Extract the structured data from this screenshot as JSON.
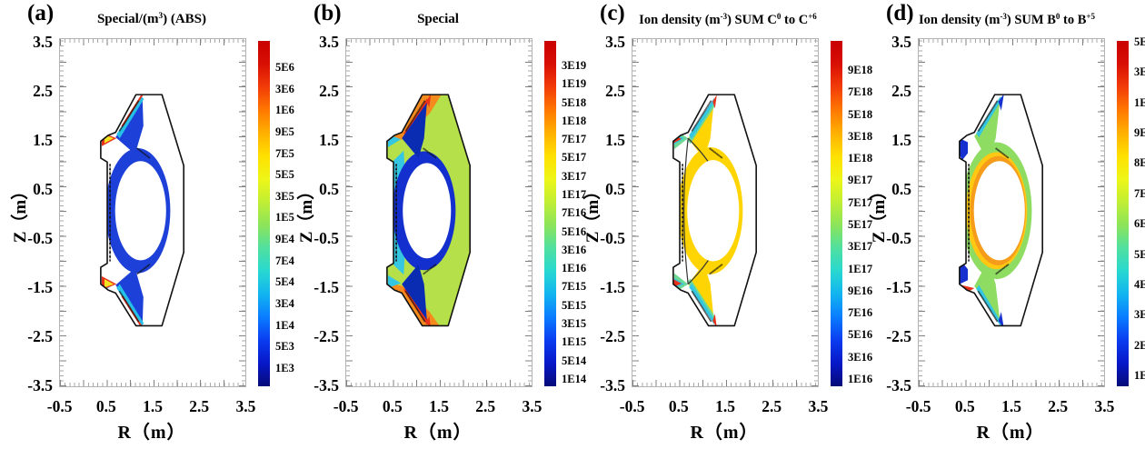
{
  "colormap_stops": [
    "#050a78",
    "#0718c8",
    "#0a3cf0",
    "#0a7cff",
    "#12b4f0",
    "#28d8d0",
    "#50e0a0",
    "#8ce45a",
    "#c0ee34",
    "#eef618",
    "#ffe000",
    "#ffb000",
    "#ff7800",
    "#f23c08",
    "#d80f04",
    "#c80000"
  ],
  "chart_data": [
    {
      "panel": "a",
      "type": "heatmap",
      "corner_label": "(a)",
      "title": "Special/(m^3) (ABS)",
      "title_parts": [
        {
          "t": "Special/(m"
        },
        {
          "t": "3",
          "sup": true
        },
        {
          "t": ") (ABS)"
        }
      ],
      "xlabel": "R（m）",
      "ylabel": "Z（m）",
      "xlim": [
        -0.5,
        3.5
      ],
      "ylim": [
        -3.5,
        3.5
      ],
      "x_ticks": [
        "-0.5",
        "0.5",
        "1.5",
        "2.5",
        "3.5"
      ],
      "y_ticks": [
        "3.5",
        "2.5",
        "1.5",
        "0.5",
        "-0.5",
        "-1.5",
        "-2.5",
        "-3.5"
      ],
      "colorbar_order": "top-to-bottom",
      "colorbar_labels": [
        "5E6",
        "3E6",
        "1E6",
        "9E5",
        "7E5",
        "5E5",
        "3E5",
        "1E5",
        "9E4",
        "7E4",
        "5E4",
        "3E4",
        "1E4",
        "5E3",
        "1E3"
      ],
      "colorbar_scale": "log",
      "colormap": "rainbow-jet",
      "region_colors": {
        "ring": "#1c40d8",
        "fan": "#25bfe8",
        "hot": "#e8321a",
        "warm": "#f2e41e",
        "core": "#ffffff"
      },
      "description": "Tokamak poloidal cross-section: thin blue edge layer around white plasma core; rainbow hot spots up to red at upper and lower inner X-point/divertor regions; log colour scale 1E3 to 5E6."
    },
    {
      "panel": "b",
      "type": "heatmap",
      "corner_label": "(b)",
      "title": "Special",
      "title_parts": [
        {
          "t": "Special"
        }
      ],
      "xlabel": "R（m）",
      "ylabel": "Z（m）",
      "xlim": [
        -0.5,
        3.5
      ],
      "ylim": [
        -3.5,
        3.5
      ],
      "x_ticks": [
        "-0.5",
        "0.5",
        "1.5",
        "2.5",
        "3.5"
      ],
      "y_ticks": [
        "3.5",
        "2.5",
        "1.5",
        "0.5",
        "-0.5",
        "-1.5",
        "-2.5",
        "-3.5"
      ],
      "colorbar_order": "top-to-bottom",
      "colorbar_labels": [
        "3E19",
        "1E19",
        "5E18",
        "1E18",
        "7E17",
        "5E17",
        "3E17",
        "1E17",
        "7E16",
        "5E16",
        "3E16",
        "1E16",
        "7E15",
        "5E15",
        "3E15",
        "1E15",
        "5E14",
        "1E14"
      ],
      "colorbar_scale": "log",
      "colormap": "rainbow-jet",
      "region_colors": {
        "base": "#b5e049",
        "outer": "#f58a1d",
        "hot": "#e8321a",
        "cold_band": "#35c6e2",
        "ring": "#1330cf",
        "fan": "#0a2cb2",
        "core": "#ffffff"
      },
      "description": "Whole vessel filled: orange divertor/outer regions, red streaks along divertor legs, yellow-green main chamber, cyan band and dark-blue ring around the white core; log colour scale 1E14 to 3E19."
    },
    {
      "panel": "c",
      "type": "heatmap",
      "corner_label": "(c)",
      "title": "Ion density (m^-3) SUM C^0 to C^+6",
      "title_parts": [
        {
          "t": "Ion density (m"
        },
        {
          "t": "-3",
          "sup": true
        },
        {
          "t": ") SUM C"
        },
        {
          "t": "0",
          "sup": true
        },
        {
          "t": " to C"
        },
        {
          "t": "+6",
          "sup": true
        }
      ],
      "xlabel": "R（m）",
      "ylabel": "Z（m）",
      "xlim": [
        -0.5,
        3.5
      ],
      "ylim": [
        -3.5,
        3.5
      ],
      "x_ticks": [
        "-0.5",
        "0.5",
        "1.5",
        "2.5",
        "3.5"
      ],
      "y_ticks": [
        "3.5",
        "2.5",
        "1.5",
        "0.5",
        "-0.5",
        "-1.5",
        "-2.5",
        "-3.5"
      ],
      "colorbar_order": "top-to-bottom",
      "colorbar_labels": [
        "9E18",
        "7E18",
        "5E18",
        "3E18",
        "1E18",
        "9E17",
        "7E17",
        "5E17",
        "3E17",
        "1E17",
        "9E16",
        "7E16",
        "5E16",
        "3E16",
        "1E16"
      ],
      "colorbar_scale": "log",
      "colormap": "rainbow-jet",
      "region_colors": {
        "ring": "#fed402",
        "fan": "#6ed895",
        "leg": "#35c6e2",
        "hot": "#e8321a",
        "core": "#ffffff"
      },
      "description": "Carbon ion density: yellow edge ring around white core, green/cyan fans near the X-points, red strike-point spots, black separatrix contour; log colour scale 1E16 to 9E18."
    },
    {
      "panel": "d",
      "type": "heatmap",
      "corner_label": "(d)",
      "title": "Ion density (m^-3) SUM B^0 to B^+5",
      "title_parts": [
        {
          "t": "Ion density (m"
        },
        {
          "t": "-3",
          "sup": true
        },
        {
          "t": ") SUM B"
        },
        {
          "t": "0",
          "sup": true
        },
        {
          "t": " to B"
        },
        {
          "t": "+5",
          "sup": true
        }
      ],
      "xlabel": "R（m）",
      "ylabel": "Z（m）",
      "xlim": [
        -0.5,
        3.5
      ],
      "ylim": [
        -3.5,
        3.5
      ],
      "x_ticks": [
        "-0.5",
        "0.5",
        "1.5",
        "2.5",
        "3.5"
      ],
      "y_ticks": [
        "3.5",
        "2.5",
        "1.5",
        "0.5",
        "-0.5",
        "-1.5",
        "-2.5",
        "-3.5"
      ],
      "colorbar_order": "top-to-bottom",
      "colorbar_labels": [
        "5E17",
        "3E17",
        "1E17",
        "9E16",
        "8E16",
        "7E16",
        "6E16",
        "5E16",
        "4E16",
        "3E16",
        "2E16",
        "1E16"
      ],
      "colorbar_scale": "log",
      "colormap": "rainbow-jet",
      "region_colors": {
        "band": "#8edc62",
        "ring": "#fec813",
        "ring_edge": "#f59c1b",
        "leg": "#35c6e2",
        "cold": "#1631d0",
        "hot": "#e8321a",
        "core": "#ffffff"
      },
      "description": "Boron ion density: yellow-orange edge ring around white core, green SOL band, cyan divertor legs, dark-blue near-wall regions, one red spot at the lower inner strike point; log colour scale 1E16 to 5E17."
    }
  ]
}
